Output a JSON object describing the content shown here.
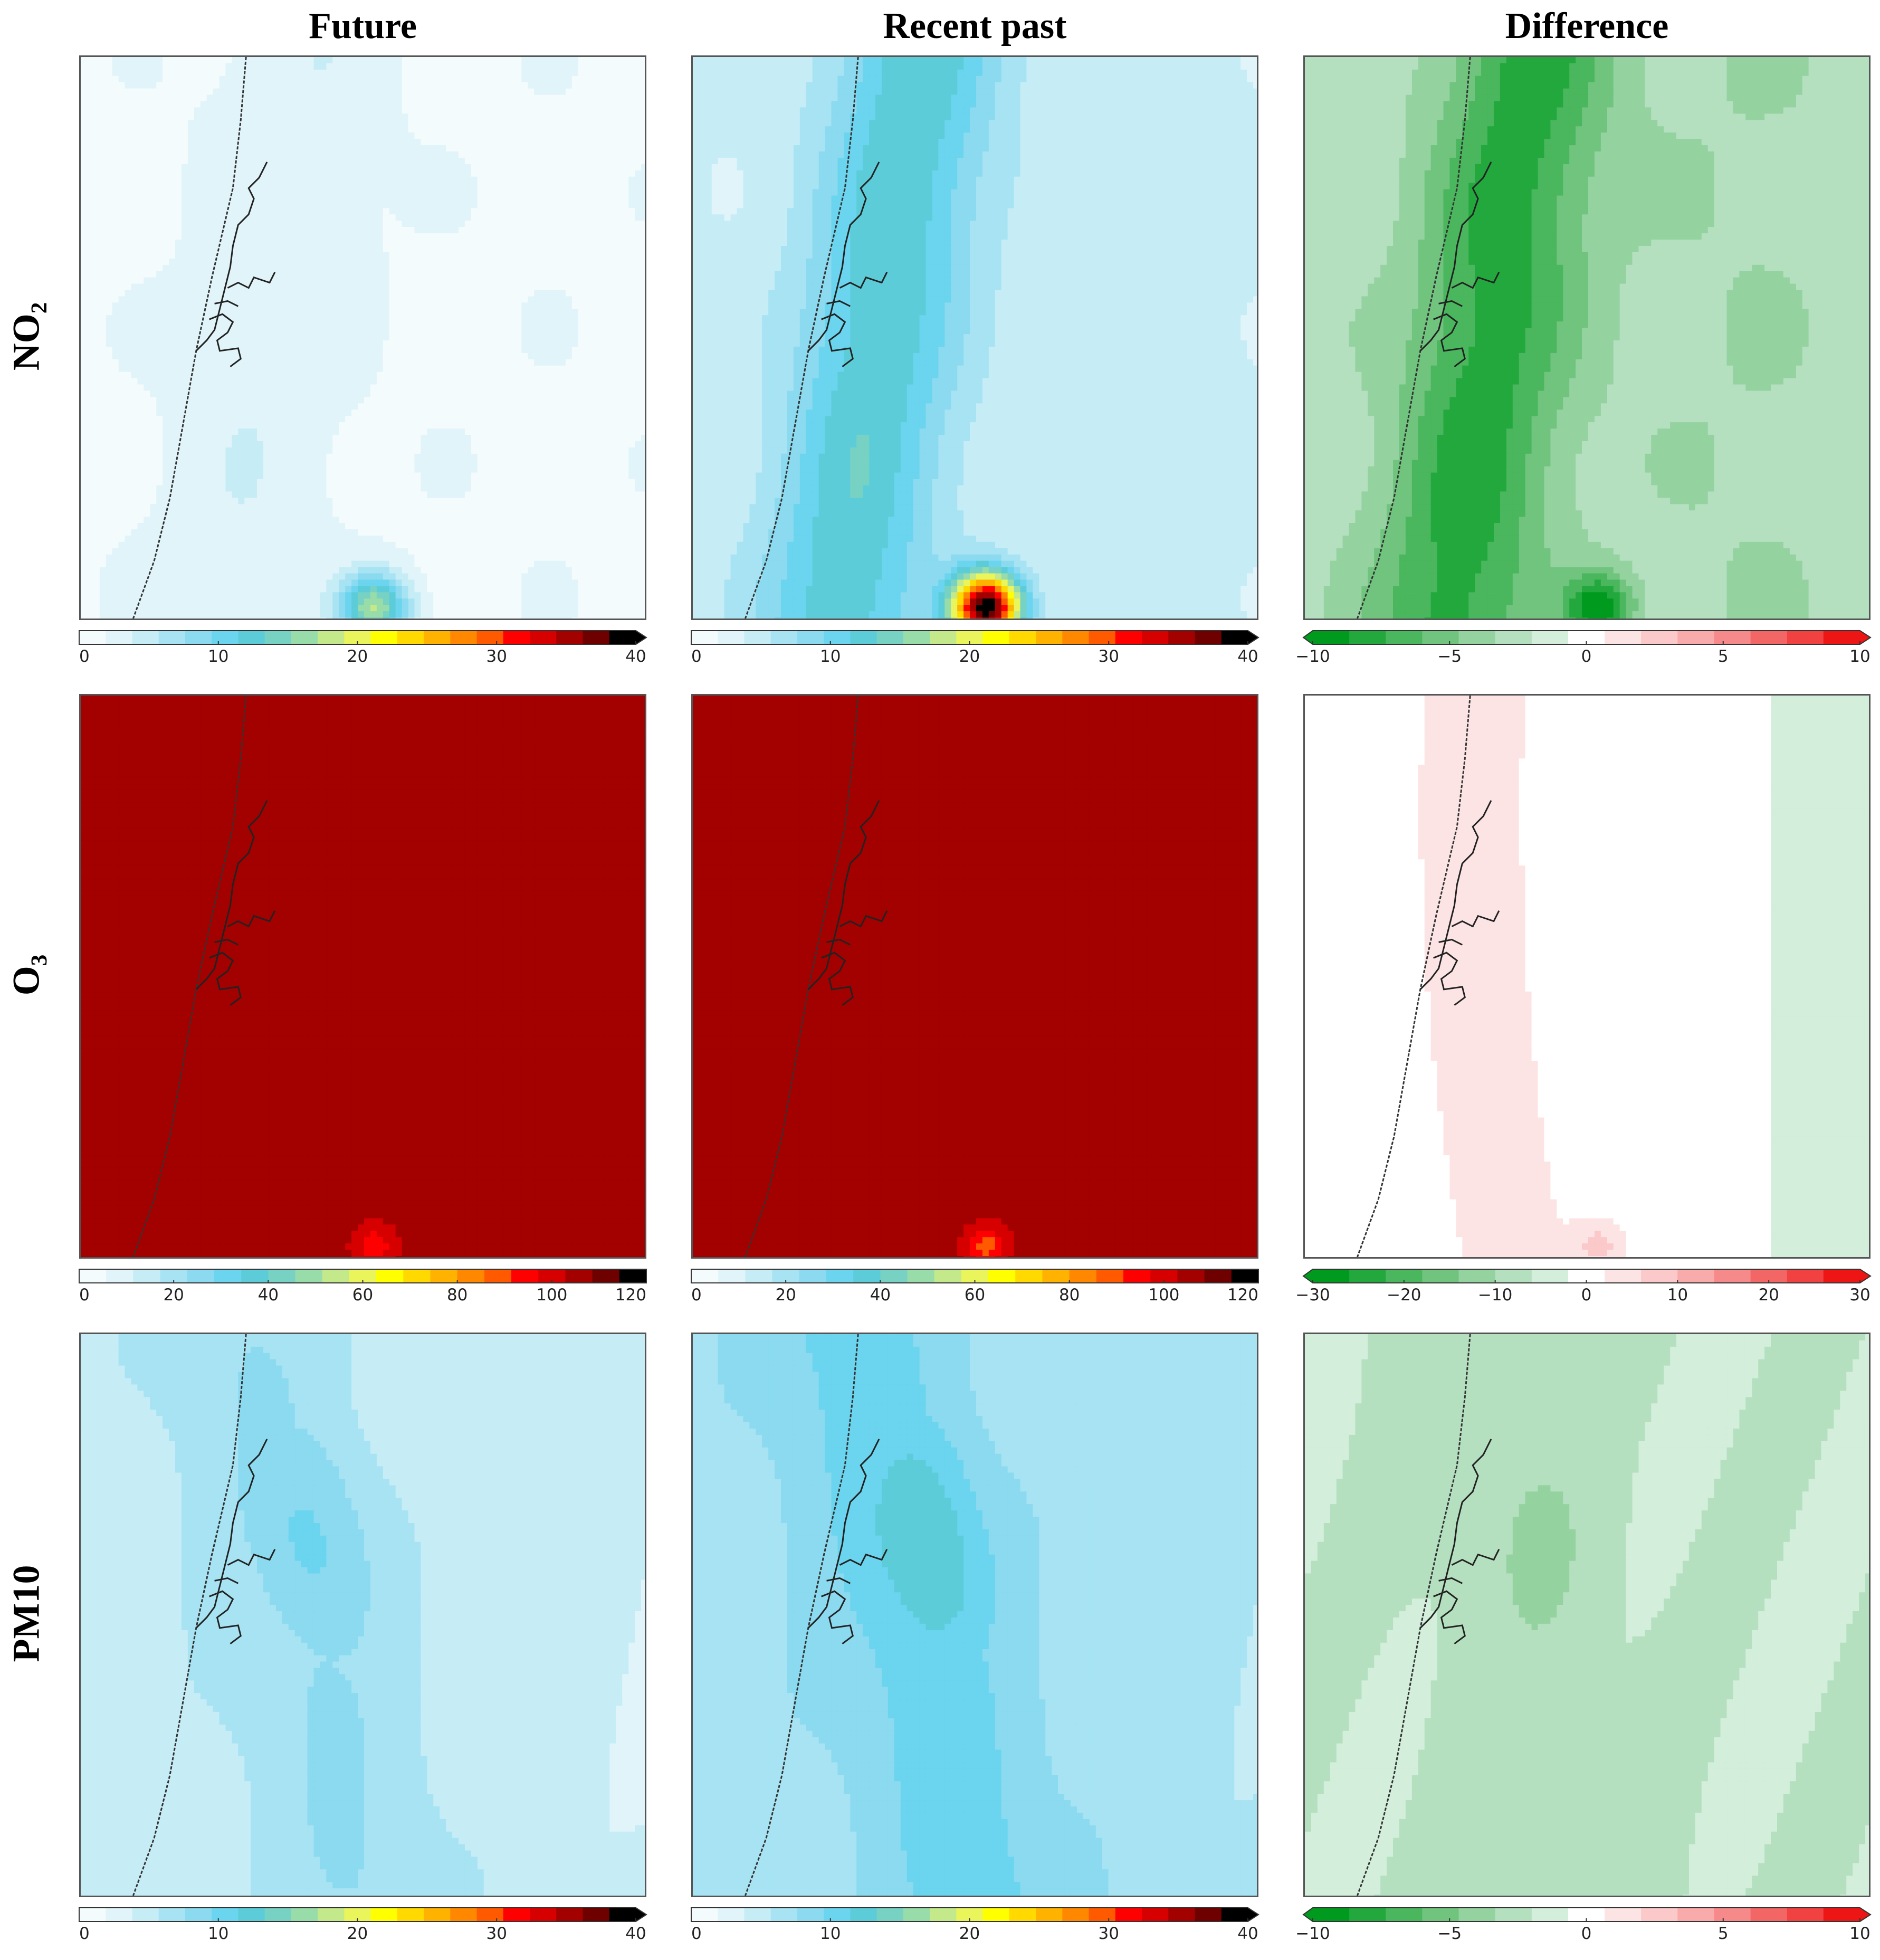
{
  "columns": [
    "Future",
    "Recent past",
    "Difference"
  ],
  "rows": [
    "NO₂",
    "O₃",
    "PM10"
  ],
  "colors": {
    "sequential": [
      "#f4fbfd",
      "#e1f4f9",
      "#c6ecf6",
      "#a7e3f3",
      "#8bdaef",
      "#6bd4ee",
      "#5ccdd8",
      "#77d2c4",
      "#98dcaa",
      "#c4e98a",
      "#e9f55b",
      "#ffff00",
      "#ffd900",
      "#ffb200",
      "#ff8800",
      "#ff5a00",
      "#ff0000",
      "#d60000",
      "#a30000",
      "#6e0000",
      "#000000"
    ],
    "diverging": [
      "#009a1f",
      "#22a83d",
      "#4ab65d",
      "#70c47e",
      "#94d2a0",
      "#b4e0c0",
      "#d3eedb",
      "#ffffff",
      "#fde4e4",
      "#fbc9c9",
      "#f9aaaa",
      "#f68a8a",
      "#f36666",
      "#f14141",
      "#ee1515"
    ]
  },
  "chart_data": [
    {
      "type": "heatmap",
      "panel": "NO2 Future",
      "pollutant": "NO2",
      "period": "Future",
      "scale": "sequential",
      "range": [
        0,
        40
      ],
      "ticks": [
        "0",
        "10",
        "20",
        "30",
        "40"
      ],
      "extend": "max",
      "field": {
        "baseline": 1.5,
        "corridor": 3.5,
        "hotspot_peak": 17
      }
    },
    {
      "type": "heatmap",
      "panel": "NO2 Recent past",
      "pollutant": "NO2",
      "period": "Recent past",
      "scale": "sequential",
      "range": [
        0,
        40
      ],
      "ticks": [
        "0",
        "10",
        "20",
        "30",
        "40"
      ],
      "extend": "max",
      "field": {
        "baseline": 4,
        "corridor": 13,
        "hotspot_peak": 40
      }
    },
    {
      "type": "heatmap",
      "panel": "NO2 Difference",
      "pollutant": "NO2",
      "period": "Difference",
      "scale": "diverging",
      "range": [
        -10,
        10
      ],
      "ticks": [
        "−10",
        "−5",
        "0",
        "5",
        "10"
      ],
      "extend": "both",
      "field": {
        "baseline": -2.5,
        "corridor": -8,
        "hotspot_peak": -10
      }
    },
    {
      "type": "heatmap",
      "panel": "O3 Future",
      "pollutant": "O3",
      "period": "Future",
      "scale": "sequential",
      "range": [
        0,
        120
      ],
      "ticks": [
        "0",
        "20",
        "40",
        "60",
        "80",
        "100",
        "120"
      ],
      "extend": "none",
      "field": {
        "baseline": 104,
        "interior": 106,
        "hotspot_peak": 92
      }
    },
    {
      "type": "heatmap",
      "panel": "O3 Recent past",
      "pollutant": "O3",
      "period": "Recent past",
      "scale": "sequential",
      "range": [
        0,
        120
      ],
      "ticks": [
        "0",
        "20",
        "40",
        "60",
        "80",
        "100",
        "120"
      ],
      "extend": "none",
      "field": {
        "baseline": 104,
        "interior": 106,
        "hotspot_peak": 88
      }
    },
    {
      "type": "heatmap",
      "panel": "O3 Difference",
      "pollutant": "O3",
      "period": "Difference",
      "scale": "diverging",
      "range": [
        -30,
        30
      ],
      "ticks": [
        "−30",
        "−20",
        "−10",
        "0",
        "10",
        "20",
        "30"
      ],
      "extend": "both",
      "field": {
        "baseline": 0,
        "corridor": 3,
        "east": -3,
        "hotspot_peak": 8
      }
    },
    {
      "type": "heatmap",
      "panel": "PM10 Future",
      "pollutant": "PM10",
      "period": "Future",
      "scale": "sequential",
      "range": [
        0,
        40
      ],
      "ticks": [
        "0",
        "10",
        "20",
        "30",
        "40"
      ],
      "extend": "max",
      "field": {
        "baseline": 5,
        "plume_peak": 10
      }
    },
    {
      "type": "heatmap",
      "panel": "PM10 Recent past",
      "pollutant": "PM10",
      "period": "Recent past",
      "scale": "sequential",
      "range": [
        0,
        40
      ],
      "ticks": [
        "0",
        "10",
        "20",
        "30",
        "40"
      ],
      "extend": "max",
      "field": {
        "baseline": 7,
        "plume_peak": 13.5
      }
    },
    {
      "type": "heatmap",
      "panel": "PM10 Difference",
      "pollutant": "PM10",
      "period": "Difference",
      "scale": "diverging",
      "range": [
        -10,
        10
      ],
      "ticks": [
        "−10",
        "−5",
        "0",
        "5",
        "10"
      ],
      "extend": "both",
      "field": {
        "baseline": -2,
        "plume_peak": -3.5
      }
    }
  ]
}
